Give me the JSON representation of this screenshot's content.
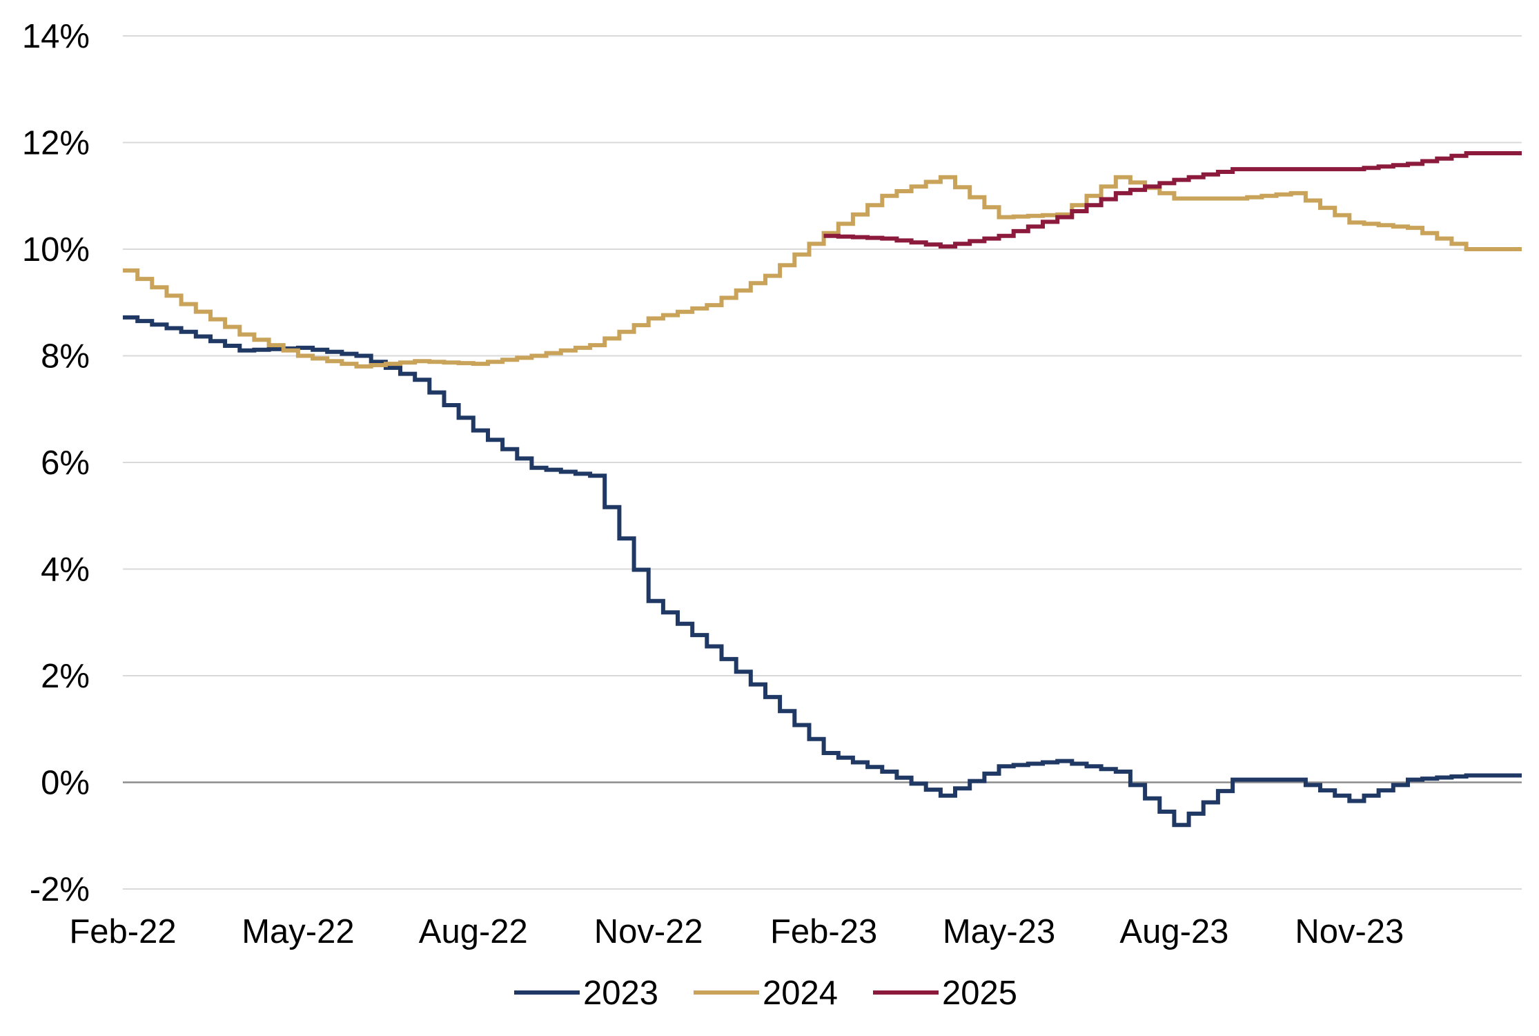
{
  "chart_data": {
    "type": "line",
    "title": "",
    "xlabel": "",
    "ylabel": "",
    "ylim": [
      -2,
      14
    ],
    "y_ticks": [
      -2,
      0,
      2,
      4,
      6,
      8,
      10,
      12,
      14
    ],
    "y_tick_labels": [
      "-2%",
      "0%",
      "2%",
      "4%",
      "6%",
      "8%",
      "10%",
      "12%",
      "14%"
    ],
    "x_range": [
      "2022-02",
      "2024-01"
    ],
    "x_ticks": [
      "2022-02",
      "2022-05",
      "2022-08",
      "2022-11",
      "2023-02",
      "2023-05",
      "2023-08",
      "2023-11"
    ],
    "x_tick_labels": [
      "Feb-22",
      "May-22",
      "Aug-22",
      "Nov-22",
      "Feb-23",
      "May-23",
      "Aug-23",
      "Nov-23"
    ],
    "grid": true,
    "legend_position": "bottom",
    "step_interpolation": true,
    "series": [
      {
        "name": "2023",
        "color": "#1f3864",
        "points": [
          [
            "2022-02",
            8.72
          ],
          [
            "2022-03",
            8.45
          ],
          [
            "2022-04",
            8.1
          ],
          [
            "2022-05",
            8.15
          ],
          [
            "2022-06",
            8.0
          ],
          [
            "2022-07",
            7.55
          ],
          [
            "2022-08",
            6.6
          ],
          [
            "2022-09",
            5.9
          ],
          [
            "2022-10",
            5.75
          ],
          [
            "2022-11",
            3.4
          ],
          [
            "2022-12",
            2.55
          ],
          [
            "2023-01",
            1.6
          ],
          [
            "2023-02",
            0.55
          ],
          [
            "2023-03",
            0.2
          ],
          [
            "2023-04",
            -0.25
          ],
          [
            "2023-05",
            0.3
          ],
          [
            "2023-06",
            0.4
          ],
          [
            "2023-07",
            0.2
          ],
          [
            "2023-08",
            -0.8
          ],
          [
            "2023-09",
            0.05
          ],
          [
            "2023-10",
            0.05
          ],
          [
            "2023-11",
            -0.35
          ],
          [
            "2023-12",
            0.05
          ],
          [
            "2024-01",
            0.13
          ]
        ]
      },
      {
        "name": "2024",
        "color": "#c9a35a",
        "points": [
          [
            "2022-02",
            9.6
          ],
          [
            "2022-03",
            8.97
          ],
          [
            "2022-04",
            8.4
          ],
          [
            "2022-05",
            8.0
          ],
          [
            "2022-06",
            7.8
          ],
          [
            "2022-07",
            7.9
          ],
          [
            "2022-08",
            7.85
          ],
          [
            "2022-09",
            8.0
          ],
          [
            "2022-10",
            8.2
          ],
          [
            "2022-11",
            8.7
          ],
          [
            "2022-12",
            8.95
          ],
          [
            "2023-01",
            9.5
          ],
          [
            "2023-02",
            10.3
          ],
          [
            "2023-03",
            11.0
          ],
          [
            "2023-04",
            11.35
          ],
          [
            "2023-05",
            10.6
          ],
          [
            "2023-06",
            10.65
          ],
          [
            "2023-07",
            11.35
          ],
          [
            "2023-08",
            10.95
          ],
          [
            "2023-09",
            10.95
          ],
          [
            "2023-10",
            11.05
          ],
          [
            "2023-11",
            10.5
          ],
          [
            "2023-12",
            10.4
          ],
          [
            "2024-01",
            10.0
          ]
        ]
      },
      {
        "name": "2025",
        "color": "#8b1a3c",
        "points": [
          [
            "2023-02",
            10.25
          ],
          [
            "2023-03",
            10.2
          ],
          [
            "2023-04",
            10.05
          ],
          [
            "2023-05",
            10.25
          ],
          [
            "2023-06",
            10.6
          ],
          [
            "2023-07",
            11.05
          ],
          [
            "2023-08",
            11.3
          ],
          [
            "2023-09",
            11.5
          ],
          [
            "2023-10",
            11.5
          ],
          [
            "2023-11",
            11.5
          ],
          [
            "2023-12",
            11.6
          ],
          [
            "2024-01",
            11.8
          ]
        ]
      }
    ]
  }
}
